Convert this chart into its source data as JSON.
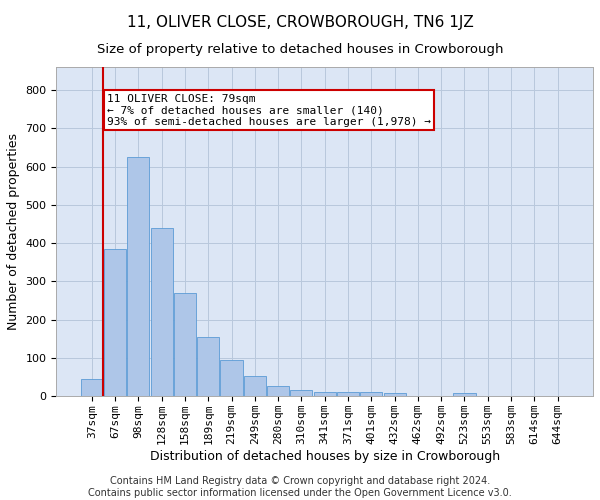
{
  "title": "11, OLIVER CLOSE, CROWBOROUGH, TN6 1JZ",
  "subtitle": "Size of property relative to detached houses in Crowborough",
  "xlabel": "Distribution of detached houses by size in Crowborough",
  "ylabel": "Number of detached properties",
  "categories": [
    "37sqm",
    "67sqm",
    "98sqm",
    "128sqm",
    "158sqm",
    "189sqm",
    "219sqm",
    "249sqm",
    "280sqm",
    "310sqm",
    "341sqm",
    "371sqm",
    "401sqm",
    "432sqm",
    "462sqm",
    "492sqm",
    "523sqm",
    "553sqm",
    "583sqm",
    "614sqm",
    "644sqm"
  ],
  "values": [
    45,
    385,
    625,
    440,
    270,
    155,
    95,
    52,
    28,
    17,
    12,
    12,
    12,
    10,
    0,
    0,
    8,
    0,
    0,
    0,
    0
  ],
  "bar_color": "#aec6e8",
  "bar_edge_color": "#5b9bd5",
  "background_color": "#ffffff",
  "plot_bg_color": "#dce6f5",
  "grid_color": "#b8c8dc",
  "annotation_line1": "11 OLIVER CLOSE: 79sqm",
  "annotation_line2": "← 7% of detached houses are smaller (140)",
  "annotation_line3": "93% of semi-detached houses are larger (1,978) →",
  "annotation_box_color": "#ffffff",
  "annotation_box_edge_color": "#cc0000",
  "vline_color": "#cc0000",
  "vline_x_index": 1,
  "ylim": [
    0,
    860
  ],
  "yticks": [
    0,
    100,
    200,
    300,
    400,
    500,
    600,
    700,
    800
  ],
  "footer": "Contains HM Land Registry data © Crown copyright and database right 2024.\nContains public sector information licensed under the Open Government Licence v3.0.",
  "title_fontsize": 11,
  "subtitle_fontsize": 9.5,
  "xlabel_fontsize": 9,
  "ylabel_fontsize": 9,
  "tick_fontsize": 8,
  "annotation_fontsize": 8,
  "footer_fontsize": 7
}
